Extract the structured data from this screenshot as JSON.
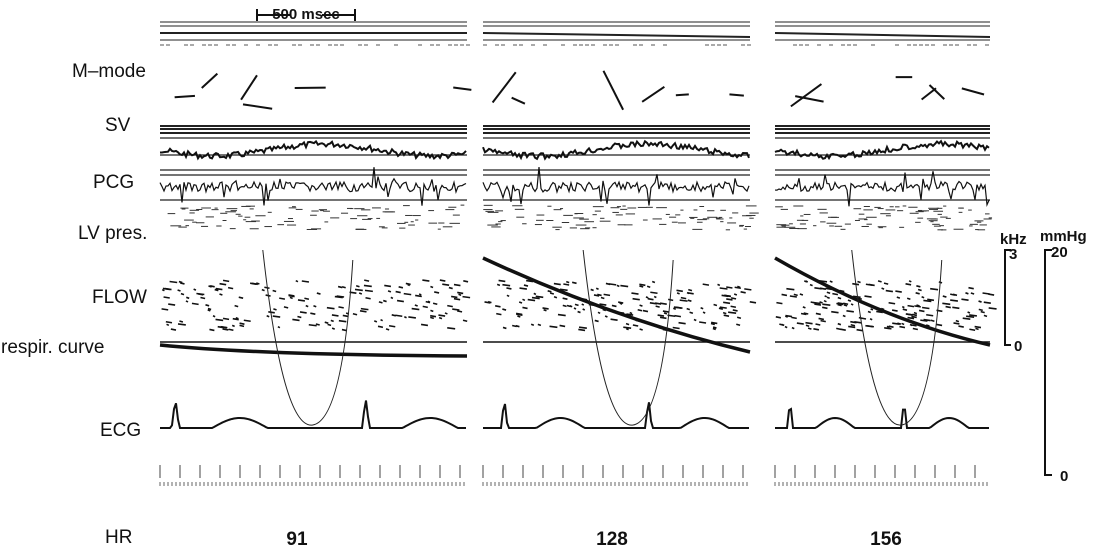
{
  "scale_bar": "500 msec",
  "trace_labels": [
    "M–mode",
    "SV",
    "PCG",
    "LV pres.",
    "FLOW",
    "respir. curve",
    "ECG"
  ],
  "freq_scale": {
    "unit": "kHz",
    "top": "3",
    "bottom": "0"
  },
  "pressure_scale": {
    "unit": "mmHg",
    "top": "20",
    "bottom": "0"
  },
  "heart_rate": {
    "label": "HR",
    "values": [
      "91",
      "128",
      "156"
    ]
  }
}
